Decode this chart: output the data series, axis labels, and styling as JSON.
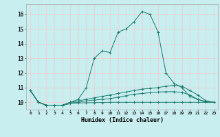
{
  "xlabel": "Humidex (Indice chaleur)",
  "bg_color": "#c8eef0",
  "grid_color": "#f5c8c8",
  "line_color": "#1a7a6e",
  "xlim": [
    -0.5,
    23.5
  ],
  "ylim": [
    9.5,
    16.7
  ],
  "yticks": [
    10,
    11,
    12,
    13,
    14,
    15,
    16
  ],
  "xticks": [
    0,
    1,
    2,
    3,
    4,
    5,
    6,
    7,
    8,
    9,
    10,
    11,
    12,
    13,
    14,
    15,
    16,
    17,
    18,
    19,
    20,
    21,
    22,
    23
  ],
  "xtick_labels": [
    "0",
    "1",
    "2",
    "3",
    "4",
    "5",
    "6",
    "7",
    "8",
    "9",
    "10",
    "11",
    "12",
    "13",
    "14",
    "15",
    "16",
    "17",
    "18",
    "19",
    "20",
    "21",
    "22",
    "23"
  ],
  "lines": [
    {
      "x": [
        0,
        1,
        2,
        3,
        4,
        5,
        6,
        7,
        8,
        9,
        10,
        11,
        12,
        13,
        14,
        15,
        16,
        17,
        18,
        19,
        20,
        21,
        22,
        23
      ],
      "y": [
        10.8,
        10.0,
        9.8,
        9.8,
        9.8,
        10.0,
        10.2,
        11.0,
        13.0,
        13.5,
        13.4,
        14.8,
        15.0,
        15.5,
        16.2,
        16.0,
        14.8,
        12.0,
        11.3,
        11.0,
        10.4,
        10.2,
        10.0,
        10.0
      ]
    },
    {
      "x": [
        0,
        1,
        2,
        3,
        4,
        5,
        6,
        7,
        8,
        9,
        10,
        11,
        12,
        13,
        14,
        15,
        16,
        17,
        18,
        19,
        20,
        21,
        22,
        23
      ],
      "y": [
        10.8,
        10.0,
        9.8,
        9.8,
        9.8,
        10.0,
        10.1,
        10.2,
        10.3,
        10.4,
        10.5,
        10.6,
        10.7,
        10.8,
        10.9,
        10.95,
        11.0,
        11.1,
        11.15,
        11.1,
        10.8,
        10.5,
        10.1,
        10.0
      ]
    },
    {
      "x": [
        0,
        1,
        2,
        3,
        4,
        5,
        6,
        7,
        8,
        9,
        10,
        11,
        12,
        13,
        14,
        15,
        16,
        17,
        18,
        19,
        20,
        21,
        22,
        23
      ],
      "y": [
        10.8,
        10.0,
        9.8,
        9.8,
        9.8,
        10.0,
        10.0,
        10.1,
        10.15,
        10.2,
        10.25,
        10.35,
        10.45,
        10.55,
        10.6,
        10.65,
        10.7,
        10.72,
        10.72,
        10.68,
        10.5,
        10.2,
        10.05,
        10.0
      ]
    },
    {
      "x": [
        0,
        1,
        2,
        3,
        4,
        5,
        6,
        7,
        8,
        9,
        10,
        11,
        12,
        13,
        14,
        15,
        16,
        17,
        18,
        19,
        20,
        21,
        22,
        23
      ],
      "y": [
        10.8,
        10.0,
        9.8,
        9.8,
        9.8,
        9.9,
        9.95,
        9.97,
        9.98,
        9.99,
        10.0,
        10.0,
        10.0,
        10.0,
        10.0,
        10.0,
        10.0,
        10.0,
        10.0,
        10.0,
        10.0,
        10.0,
        10.0,
        10.0
      ]
    }
  ]
}
